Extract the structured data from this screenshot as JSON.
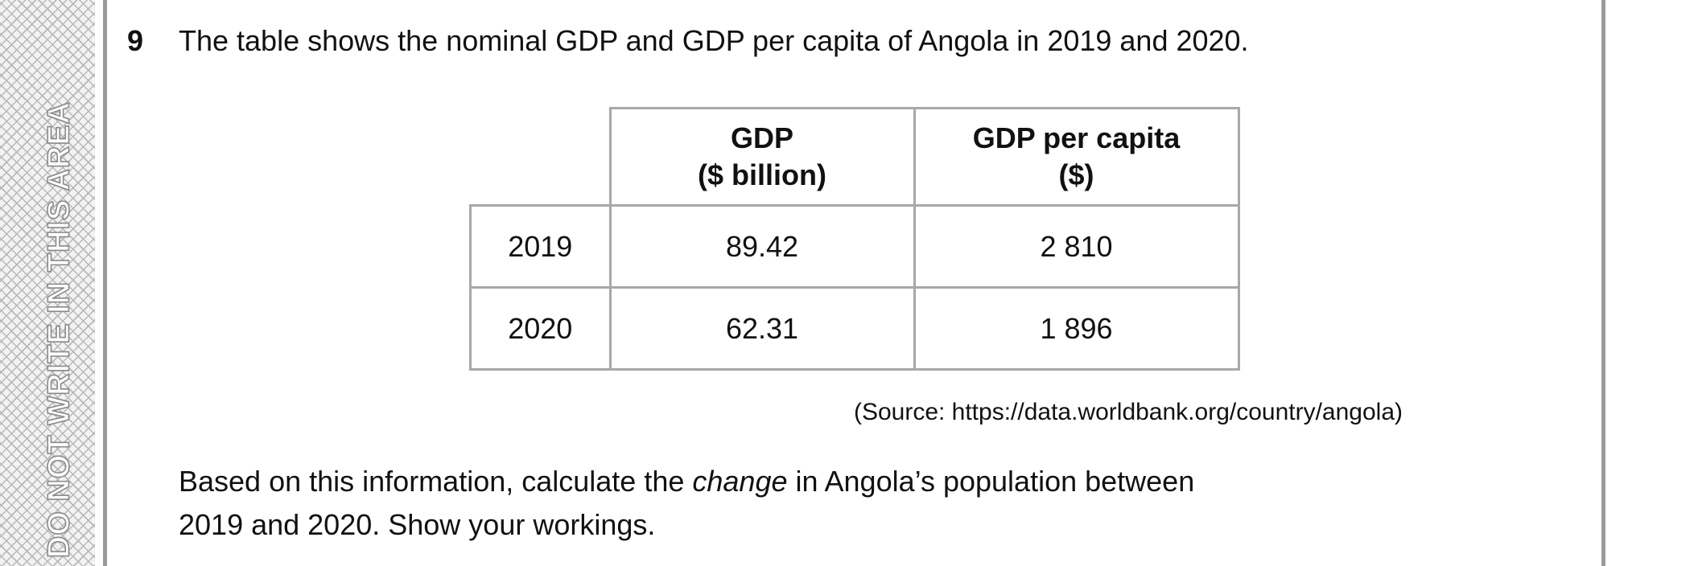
{
  "margin_warning": "DO NOT WRITE IN THIS AREA",
  "question": {
    "number": "9",
    "intro": "The table shows the nominal GDP and GDP per capita of Angola in 2019 and 2020.",
    "table": {
      "headers": [
        {
          "line1": "GDP",
          "line2": "($ billion)"
        },
        {
          "line1": "GDP per capita",
          "line2": "($)"
        }
      ],
      "rows": [
        {
          "year": "2019",
          "gdp": "89.42",
          "gdp_per_capita": "2 810"
        },
        {
          "year": "2020",
          "gdp": "62.31",
          "gdp_per_capita": "1 896"
        }
      ]
    },
    "source": "(Source: https://data.worldbank.org/country/angola)",
    "prompt_before": "Based on this information, calculate the ",
    "prompt_emphasis": "change",
    "prompt_after": " in Angola’s population between",
    "prompt_line2": "2019 and 2020. Show your workings."
  }
}
